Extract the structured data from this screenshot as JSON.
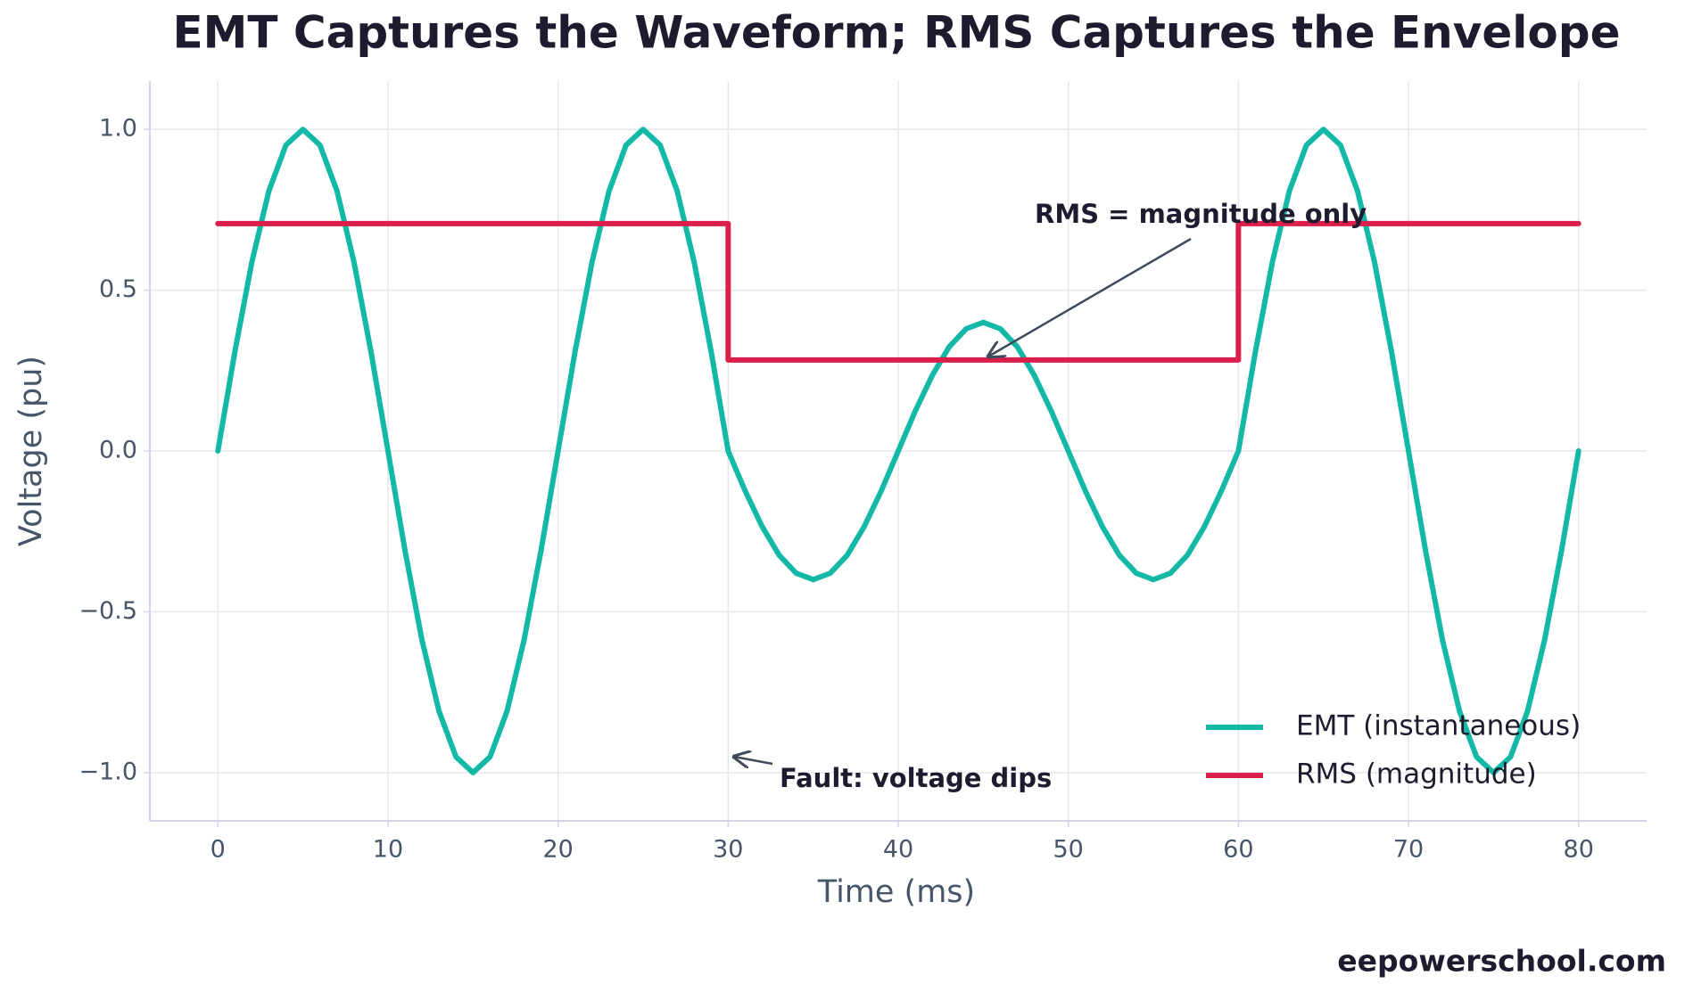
{
  "chart_data": {
    "type": "line",
    "title": "EMT Captures the Waveform; RMS Captures the Envelope",
    "x_label": "Time (ms)",
    "y_label": "Voltage (pu)",
    "xlim": [
      -4,
      84
    ],
    "ylim": [
      -1.15,
      1.15
    ],
    "xticks": [
      0,
      10,
      20,
      30,
      40,
      50,
      60,
      70,
      80
    ],
    "yticks": [
      {
        "value": -1.0,
        "label": "−1.0"
      },
      {
        "value": -0.5,
        "label": "−0.5"
      },
      {
        "value": 0.0,
        "label": "0.0"
      },
      {
        "value": 0.5,
        "label": "0.5"
      },
      {
        "value": 1.0,
        "label": "1.0"
      }
    ],
    "grid": true,
    "legend": "lower right",
    "series": [
      {
        "name": "EMT (instantaneous)",
        "color": "#14b8a6",
        "x": [
          0,
          1,
          2,
          3,
          4,
          5,
          6,
          7,
          8,
          9,
          10,
          11,
          12,
          13,
          14,
          15,
          16,
          17,
          18,
          19,
          20,
          21,
          22,
          23,
          24,
          25,
          26,
          27,
          28,
          29,
          30,
          31,
          32,
          33,
          34,
          35,
          36,
          37,
          38,
          39,
          40,
          41,
          42,
          43,
          44,
          45,
          46,
          47,
          48,
          49,
          50,
          51,
          52,
          53,
          54,
          55,
          56,
          57,
          58,
          59,
          60,
          61,
          62,
          63,
          64,
          65,
          66,
          67,
          68,
          69,
          70,
          71,
          72,
          73,
          74,
          75,
          76,
          77,
          78,
          79,
          80
        ],
        "values": [
          0,
          0.309,
          0.588,
          0.809,
          0.951,
          1,
          0.951,
          0.809,
          0.588,
          0.309,
          0,
          -0.309,
          -0.588,
          -0.809,
          -0.951,
          -1,
          -0.951,
          -0.809,
          -0.588,
          -0.309,
          0,
          0.309,
          0.588,
          0.809,
          0.951,
          1,
          0.951,
          0.809,
          0.588,
          0.309,
          0,
          -0.124,
          -0.235,
          -0.324,
          -0.38,
          -0.4,
          -0.38,
          -0.324,
          -0.235,
          -0.124,
          0,
          0.124,
          0.235,
          0.324,
          0.38,
          0.4,
          0.38,
          0.324,
          0.235,
          0.124,
          0,
          -0.124,
          -0.235,
          -0.324,
          -0.38,
          -0.4,
          -0.38,
          -0.324,
          -0.235,
          -0.124,
          0,
          0.309,
          0.588,
          0.809,
          0.951,
          1,
          0.951,
          0.809,
          0.588,
          0.309,
          0,
          -0.309,
          -0.588,
          -0.809,
          -0.951,
          -1,
          -0.951,
          -0.809,
          -0.588,
          -0.309,
          0
        ]
      },
      {
        "name": "RMS (magnitude)",
        "color": "#dc1f4a",
        "x": [
          0,
          30,
          30,
          60,
          60,
          80
        ],
        "values": [
          0.707,
          0.707,
          0.283,
          0.283,
          0.707,
          0.707
        ]
      }
    ],
    "annotations": [
      "RMS = magnitude only",
      "Fault: voltage dips"
    ],
    "footer": "eepowerschool.com"
  }
}
